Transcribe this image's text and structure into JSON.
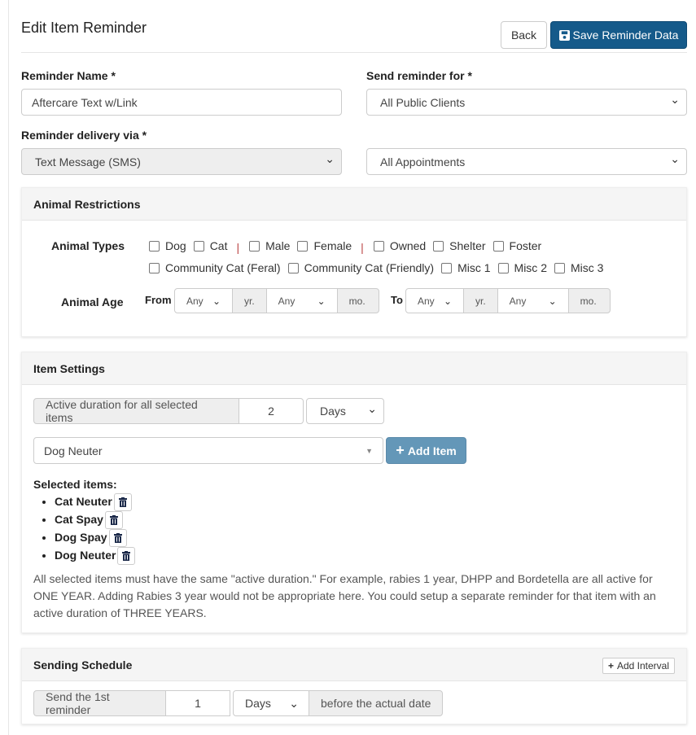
{
  "header": {
    "title": "Edit Item Reminder",
    "back_label": "Back",
    "save_label": "Save Reminder Data"
  },
  "form": {
    "name_label": "Reminder Name *",
    "name_value": "Aftercare Text w/Link",
    "send_for_label": "Send reminder for *",
    "send_for_value": "All Public Clients",
    "delivery_label": "Reminder delivery via *",
    "delivery_value": "Text Message (SMS)",
    "appointments_value": "All Appointments"
  },
  "animal_restrictions": {
    "title": "Animal Restrictions",
    "types_label": "Animal Types",
    "row1": [
      "Dog",
      "Cat",
      "|",
      "Male",
      "Female",
      "|",
      "Owned",
      "Shelter",
      "Foster"
    ],
    "row2": [
      "Community Cat (Feral)",
      "Community Cat (Friendly)",
      "Misc 1",
      "Misc 2",
      "Misc 3"
    ],
    "age_label": "Animal Age",
    "from_label": "From",
    "to_label": "To",
    "any": "Any",
    "yr": "yr.",
    "mo": "mo."
  },
  "item_settings": {
    "title": "Item Settings",
    "duration_label": "Active duration for all selected items",
    "duration_value": "2",
    "duration_unit": "Days",
    "item_select": "Dog Neuter",
    "add_item_label": "Add Item",
    "selected_label": "Selected items:",
    "selected": [
      "Cat Neuter",
      "Cat Spay",
      "Dog Spay",
      "Dog Neuter"
    ],
    "note": "All selected items must have the same \"active duration.\" For example, rabies 1 year, DHPP and Bordetella are all active for ONE YEAR. Adding Rabies 3 year would not be appropriate here. You could setup a separate reminder for that item with an active duration of THREE YEARS."
  },
  "schedule": {
    "title": "Sending Schedule",
    "add_interval_label": "Add Interval",
    "send_label": "Send the 1st reminder",
    "value": "1",
    "unit": "Days",
    "suffix": "before the actual date"
  },
  "colors": {
    "primary": "#155a8a",
    "add_item": "#6497b8",
    "trash": "#1c2a4a"
  }
}
